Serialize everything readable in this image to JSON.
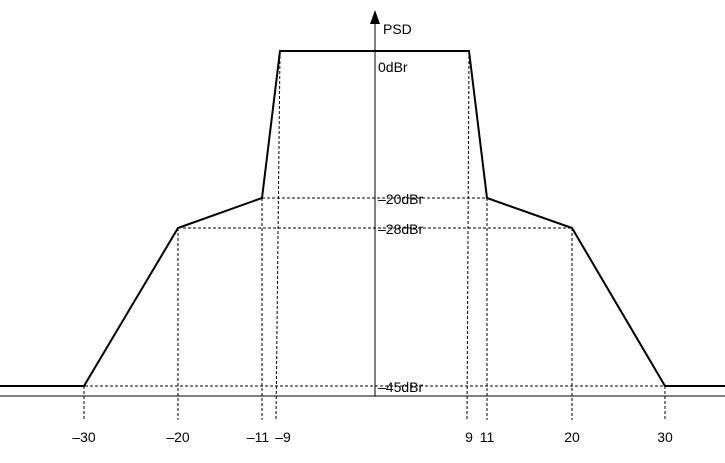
{
  "chart_data": {
    "type": "line",
    "ylabel": "PSD",
    "x_ticks": [
      "–30",
      "–20",
      "–11",
      "–9",
      "9",
      "11",
      "20",
      "30"
    ],
    "y_levels": [
      "0dBr",
      "–20dBr",
      "–28dBr",
      "–45dBr"
    ],
    "mask": {
      "x": [
        -40,
        -30,
        -20,
        -11,
        -9,
        9,
        11,
        20,
        30,
        40
      ],
      "y": [
        -45,
        -45,
        -28,
        -20,
        0,
        0,
        -20,
        -28,
        -45,
        -45
      ]
    },
    "xlim": [
      -40,
      40
    ],
    "ylim": [
      -51,
      8
    ],
    "guides": "dashed projection lines at every breakpoint"
  }
}
